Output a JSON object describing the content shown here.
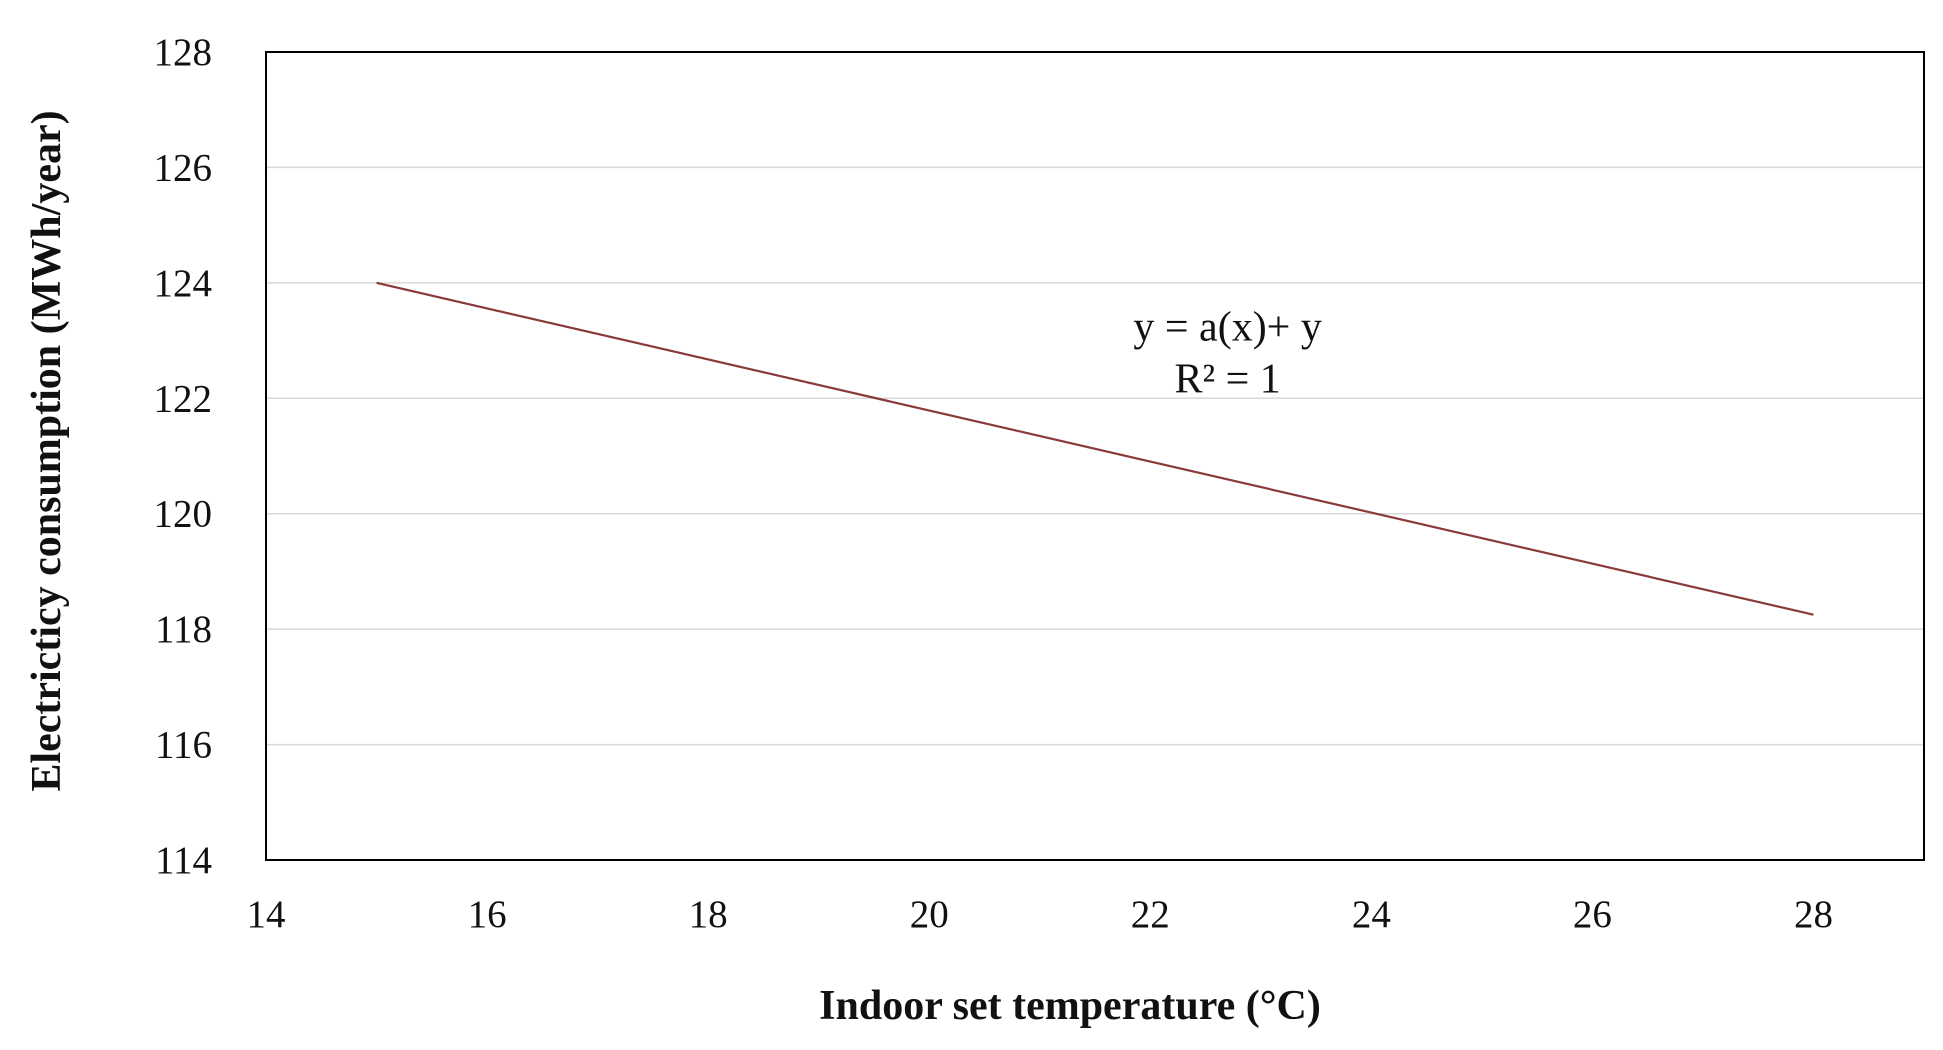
{
  "chart_data": {
    "type": "line",
    "title": "",
    "xlabel": "Indoor set temperature (°C)",
    "ylabel": "Electricticy consumption (MWh/year)",
    "xlim": [
      14,
      29
    ],
    "ylim": [
      114,
      128
    ],
    "x_ticks": [
      14,
      16,
      18,
      20,
      22,
      24,
      26,
      28
    ],
    "x_tick_labels": [
      "14",
      "16",
      "18",
      "20",
      "22",
      "24",
      "26",
      "28"
    ],
    "y_ticks": [
      114,
      116,
      118,
      120,
      122,
      124,
      126,
      128
    ],
    "y_tick_labels": [
      "114",
      "116",
      "118",
      "120",
      "122",
      "124",
      "126",
      "128"
    ],
    "grid": "horizontal",
    "legend": "none",
    "series": [
      {
        "x": [
          15,
          28
        ],
        "y": [
          124.0,
          118.25
        ],
        "color": "#8b3a3a"
      }
    ],
    "annotations": [
      {
        "text": "y = a(x)+ y",
        "x": 22.7,
        "y": 123.0
      },
      {
        "text": "R² = 1",
        "x": 22.7,
        "y": 122.1
      }
    ],
    "colors": {
      "line": "#8b3a3a",
      "grid": "#d9d9d9",
      "frame": "#000000",
      "text": "#111111"
    }
  }
}
